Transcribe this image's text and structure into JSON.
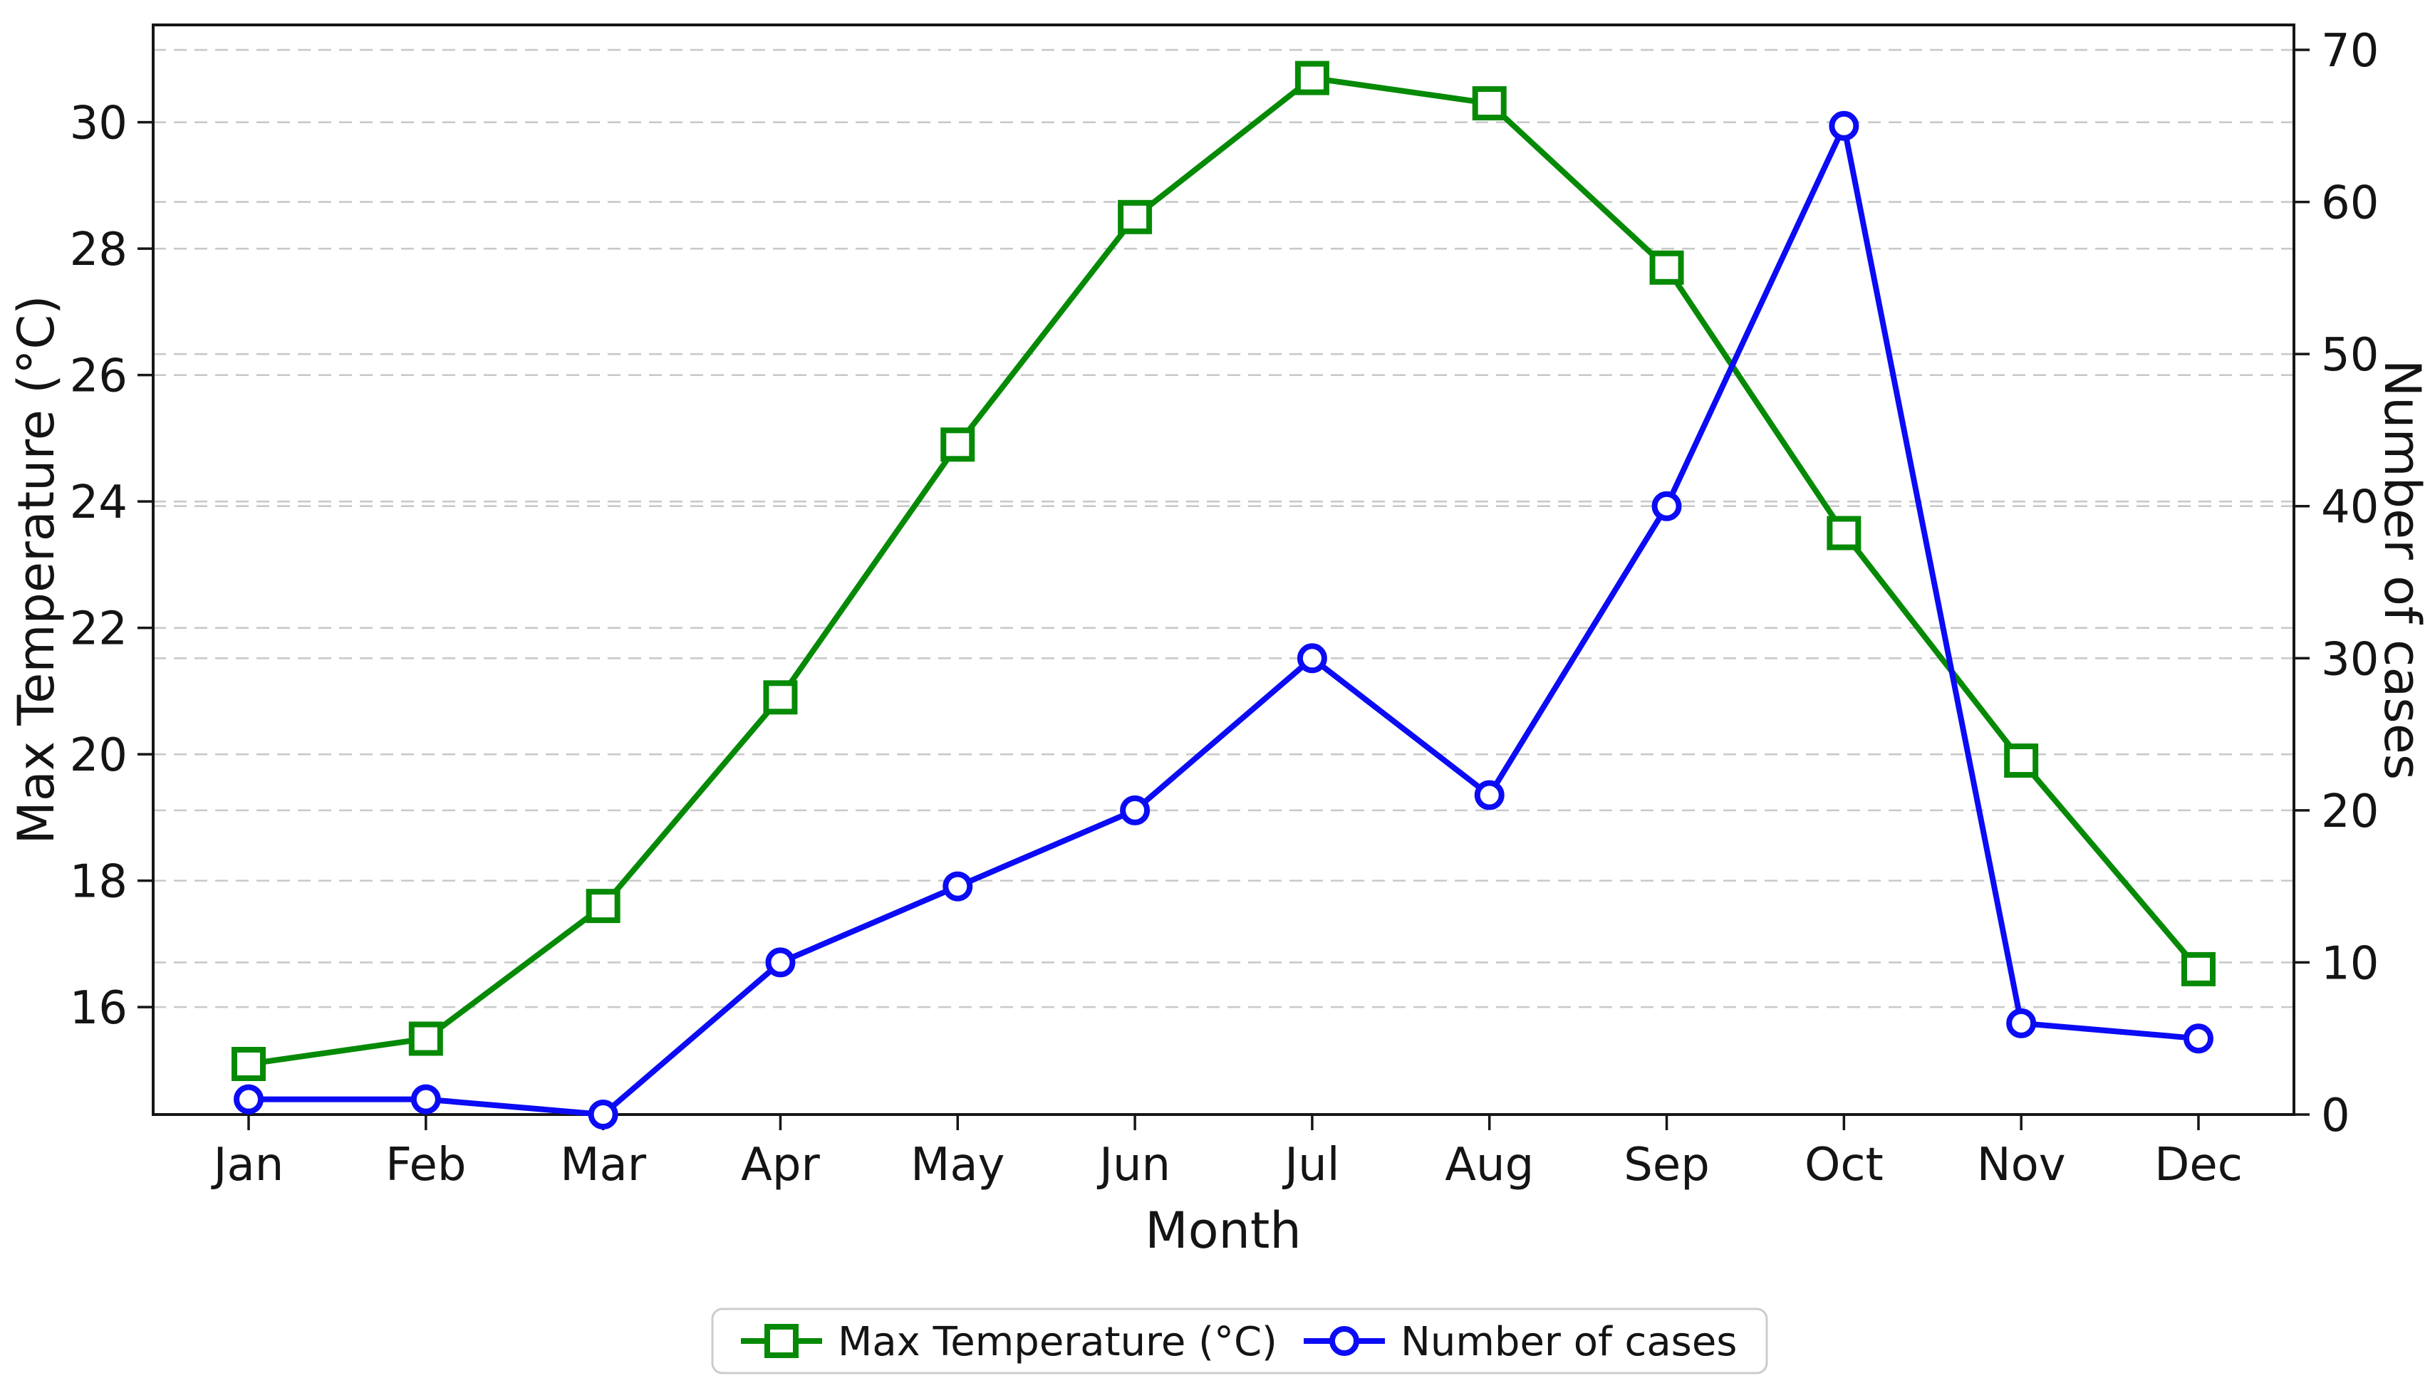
{
  "chart_data": {
    "type": "line",
    "categories": [
      "Jan",
      "Feb",
      "Mar",
      "Apr",
      "May",
      "Jun",
      "Jul",
      "Aug",
      "Sep",
      "Oct",
      "Nov",
      "Dec"
    ],
    "series": [
      {
        "name": "Max Temperature (°C)",
        "axis": "left",
        "color": "#068a06",
        "marker": "square",
        "values": [
          15.1,
          15.5,
          17.6,
          20.9,
          24.9,
          28.5,
          30.7,
          30.3,
          27.7,
          23.5,
          19.9,
          16.6
        ]
      },
      {
        "name": "Number of cases",
        "axis": "right",
        "color": "#0b0bf5",
        "marker": "circle",
        "values": [
          1,
          1,
          0,
          10,
          15,
          20,
          30,
          21,
          40,
          65,
          6,
          5
        ]
      }
    ],
    "axes": {
      "x": {
        "label": "Month",
        "tick_labels": [
          "Jan",
          "Feb",
          "Mar",
          "Apr",
          "May",
          "Jun",
          "Jul",
          "Aug",
          "Sep",
          "Oct",
          "Nov",
          "Dec"
        ]
      },
      "left": {
        "label": "Max Temperature (°C)",
        "ticks": [
          16,
          18,
          20,
          22,
          24,
          26,
          28,
          30
        ],
        "lim": [
          14.3,
          31.54
        ]
      },
      "right": {
        "label": "Number of cases",
        "ticks": [
          0,
          10,
          20,
          30,
          40,
          50,
          60,
          70
        ],
        "lim": [
          0,
          71.64
        ]
      }
    },
    "grid": {
      "on": true,
      "style": "dashed",
      "color": "#c9c9c9"
    },
    "legend": {
      "position": "bottom-center",
      "entries": [
        "Max Temperature (°C)",
        "Number of cases"
      ]
    },
    "colors": {
      "background": "#ffffff",
      "spine": "#161616",
      "text": "#141414",
      "legend_border": "#cccccc"
    },
    "title": ""
  }
}
